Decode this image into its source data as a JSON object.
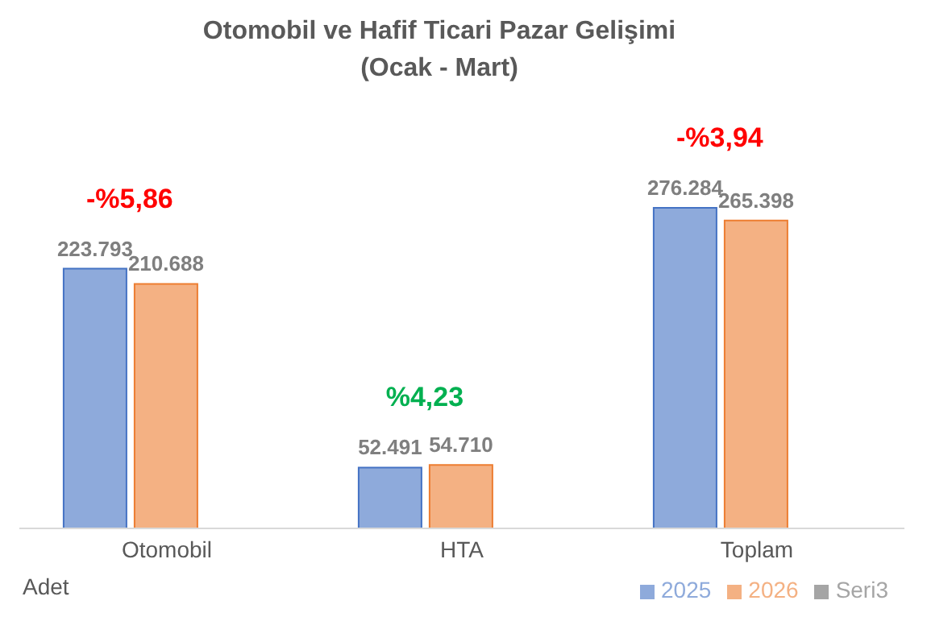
{
  "chart_data": {
    "type": "bar",
    "title": "Otomobil ve Hafif Ticari Pazar Gelişimi",
    "subtitle": "(Ocak - Mart)",
    "categories": [
      "Otomobil",
      "HTA",
      "Toplam"
    ],
    "series": [
      {
        "name": "2025",
        "color": "#8eaadb",
        "values": [
          223793,
          52491,
          276284
        ],
        "value_labels": [
          "223.793",
          "52.491",
          "276.284"
        ]
      },
      {
        "name": "2026",
        "color": "#f4b183",
        "values": [
          210688,
          54710,
          265398
        ],
        "value_labels": [
          "210.688",
          "54.710",
          "265.398"
        ]
      },
      {
        "name": "Seri3",
        "color": "#a5a5a5",
        "values": [
          null,
          null,
          null
        ]
      }
    ],
    "annotations": [
      "-%5,86",
      "%4,23",
      "-%3,94",
      "Adet"
    ],
    "legend": "bottom right"
  }
}
